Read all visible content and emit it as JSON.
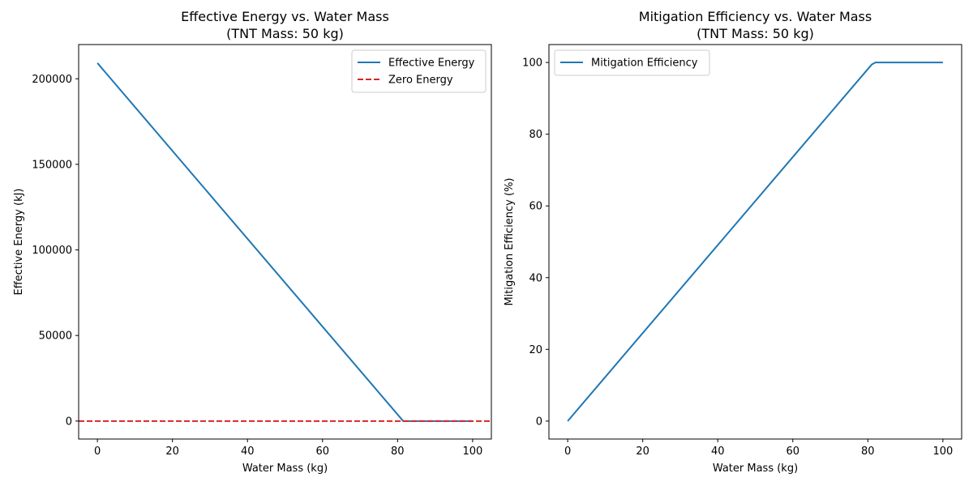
{
  "chart_data": [
    {
      "type": "line",
      "title_line1": "Effective Energy vs. Water Mass",
      "title_line2": "(TNT Mass: 50 kg)",
      "xlabel": "Water Mass (kg)",
      "ylabel": "Effective Energy (kJ)",
      "xlim": [
        -5,
        105
      ],
      "ylim": [
        -10500,
        220000
      ],
      "xticks": [
        0,
        20,
        40,
        60,
        80,
        100
      ],
      "yticks": [
        0,
        50000,
        100000,
        150000,
        200000
      ],
      "legend": "top-right",
      "grid": false,
      "series": [
        {
          "name": "Effective Energy",
          "color": "#1f77b4",
          "style": "solid",
          "x": [
            0,
            81.5,
            82,
            100
          ],
          "y": [
            209200,
            0,
            0,
            0
          ]
        },
        {
          "name": "Zero Energy",
          "color": "#d62728",
          "style": "dashed",
          "hline": 0
        }
      ]
    },
    {
      "type": "line",
      "title_line1": "Mitigation Efficiency vs. Water Mass",
      "title_line2": "(TNT Mass: 50 kg)",
      "xlabel": "Water Mass (kg)",
      "ylabel": "Mitigation Efficiency (%)",
      "xlim": [
        -5,
        105
      ],
      "ylim": [
        -5,
        105
      ],
      "xticks": [
        0,
        20,
        40,
        60,
        80,
        100
      ],
      "yticks": [
        0,
        20,
        40,
        60,
        80,
        100
      ],
      "legend": "top-left",
      "grid": false,
      "series": [
        {
          "name": "Mitigation Efficiency",
          "color": "#1f77b4",
          "style": "solid",
          "x": [
            0,
            81,
            82,
            100
          ],
          "y": [
            0,
            99.4,
            100,
            100
          ]
        }
      ]
    }
  ]
}
